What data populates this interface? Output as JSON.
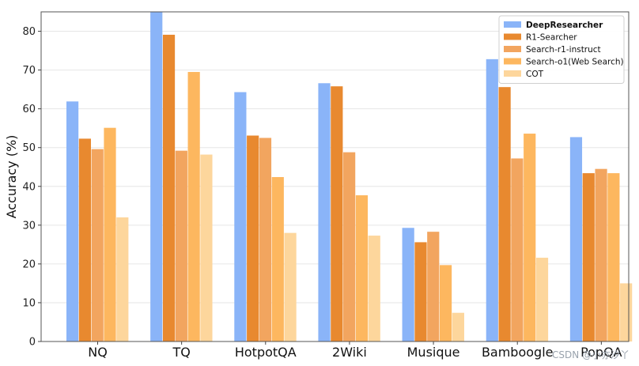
{
  "chart_data": {
    "type": "bar",
    "categories": [
      "NQ",
      "TQ",
      "HotpotQA",
      "2Wiki",
      "Musique",
      "Bamboogle",
      "PopQA"
    ],
    "series": [
      {
        "name": "DeepResearcher",
        "color": "#8ab4f8",
        "values": [
          61.9,
          85.0,
          64.3,
          66.6,
          29.3,
          72.8,
          52.7
        ]
      },
      {
        "name": "R1-Searcher",
        "color": "#e8892f",
        "values": [
          52.3,
          79.1,
          53.1,
          65.8,
          25.6,
          65.6,
          43.4
        ]
      },
      {
        "name": "Search-r1-instruct",
        "color": "#f2a55f",
        "values": [
          49.6,
          49.2,
          52.5,
          48.8,
          28.3,
          47.2,
          44.5
        ]
      },
      {
        "name": "Search-o1(Web Search)",
        "color": "#fdb75f",
        "values": [
          55.1,
          69.5,
          42.4,
          37.7,
          19.7,
          53.6,
          43.4
        ]
      },
      {
        "name": "COT",
        "color": "#fdd69c",
        "values": [
          32.0,
          48.2,
          28.0,
          27.3,
          7.4,
          21.6,
          15.0
        ]
      }
    ],
    "ylabel": "Accuracy (%)",
    "ylim": [
      0,
      85
    ],
    "yticks": [
      0,
      10,
      20,
      30,
      40,
      50,
      60,
      70,
      80
    ],
    "grid": true,
    "legend_position": "top-right"
  },
  "watermark": "CSDN @小亦汐丫"
}
